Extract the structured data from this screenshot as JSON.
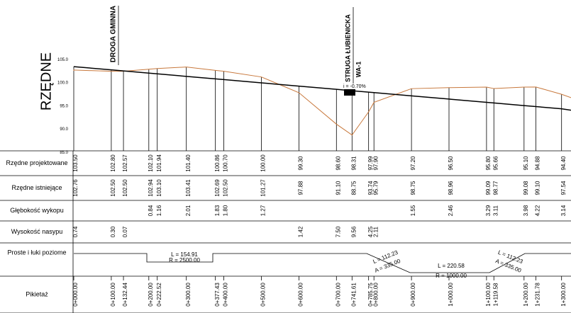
{
  "axis_title": "RZĘDNE",
  "elevation_ticks": [
    "105.0",
    "100.0",
    "95.0",
    "90.0",
    "85.0"
  ],
  "annotations": {
    "road": "DROGA GMINNA",
    "stream": "STRUGA ŁUBIENICKA",
    "culvert": "WA-1",
    "slope": "i = -0.70%"
  },
  "rows": {
    "design": "Rzędne projektowane",
    "existing": "Rzędne istniejące",
    "cut": "Głębokość wykopu",
    "fill": "Wysokość nasypu",
    "alignment": "Proste i łuki poziome",
    "chainage": "Pikietaż"
  },
  "stations": [
    {
      "chainage": "0+000.00",
      "design": "103.50",
      "existing": "102.76",
      "cut": null,
      "fill": "0.74"
    },
    {
      "chainage": "0+100.00",
      "design": "102.80",
      "existing": "102.50",
      "cut": null,
      "fill": "0.30"
    },
    {
      "chainage": "0+132.44",
      "design": "102.57",
      "existing": "102.50",
      "cut": null,
      "fill": "0.07"
    },
    {
      "chainage": "0+200.00",
      "design": "102.10",
      "existing": "102.94",
      "cut": "0.84",
      "fill": null
    },
    {
      "chainage": "0+222.52",
      "design": "101.94",
      "existing": "103.10",
      "cut": "1.16",
      "fill": null
    },
    {
      "chainage": "0+300.00",
      "design": "101.40",
      "existing": "103.41",
      "cut": "2.01",
      "fill": null
    },
    {
      "chainage": "0+377.43",
      "design": "100.86",
      "existing": "102.69",
      "cut": "1.83",
      "fill": null
    },
    {
      "chainage": "0+400.00",
      "design": "100.70",
      "existing": "102.50",
      "cut": "1.80",
      "fill": null
    },
    {
      "chainage": "0+500.00",
      "design": "100.00",
      "existing": "101.27",
      "cut": "1.27",
      "fill": null
    },
    {
      "chainage": "0+600.00",
      "design": "99.30",
      "existing": "97.88",
      "cut": null,
      "fill": "1.42"
    },
    {
      "chainage": "0+700.00",
      "design": "98.60",
      "existing": "91.10",
      "cut": null,
      "fill": "7.50"
    },
    {
      "chainage": "0+741.61",
      "design": "98.31",
      "existing": "88.75",
      "cut": null,
      "fill": "9.56"
    },
    {
      "chainage": "0+785.75",
      "design": "97.99",
      "existing": "93.74",
      "cut": null,
      "fill": "4.25"
    },
    {
      "chainage": "0+800.00",
      "design": "97.90",
      "existing": "95.79",
      "cut": null,
      "fill": "2.11"
    },
    {
      "chainage": "0+900.00",
      "design": "97.20",
      "existing": "98.75",
      "cut": "1.55",
      "fill": null
    },
    {
      "chainage": "1+000.00",
      "design": "96.50",
      "existing": "98.96",
      "cut": "2.46",
      "fill": null
    },
    {
      "chainage": "1+100.00",
      "design": "95.80",
      "existing": "99.09",
      "cut": "3.29",
      "fill": null
    },
    {
      "chainage": "1+119.58",
      "design": "95.66",
      "existing": "98.77",
      "cut": "3.11",
      "fill": null
    },
    {
      "chainage": "1+200.00",
      "design": "95.10",
      "existing": "99.08",
      "cut": "3.98",
      "fill": null
    },
    {
      "chainage": "1+231.78",
      "design": "94.88",
      "existing": "99.10",
      "cut": "4.22",
      "fill": null
    },
    {
      "chainage": "1+300.00",
      "design": "94.40",
      "existing": "97.54",
      "cut": "3.14",
      "fill": null
    }
  ],
  "alignment": [
    {
      "length": "L = 154.91",
      "parameter": "R = 2500.00"
    },
    {
      "length": "L = 112.23",
      "parameter": "A = 335.00"
    },
    {
      "length": "L = 220.58",
      "parameter": "R = 1000.00"
    },
    {
      "length": "L = 112.23",
      "parameter": "A = 335.00"
    }
  ]
}
